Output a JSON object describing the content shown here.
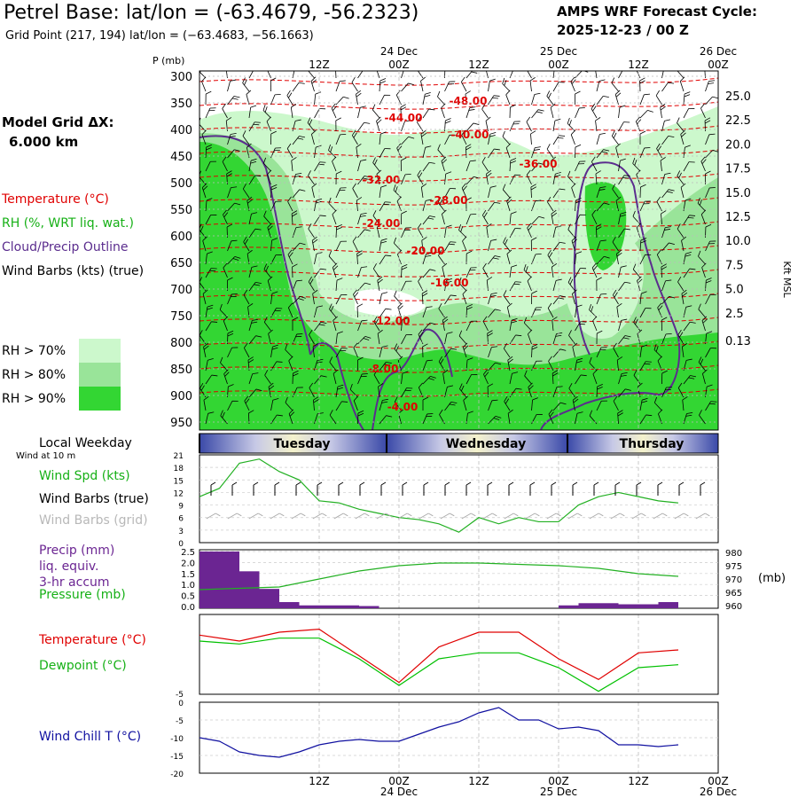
{
  "header": {
    "title": "Petrel Base:  lat/lon = (-63.4679, -56.2323)",
    "grid_point": "Grid Point (217, 194) lat/lon = (−63.4683, −56.1663)",
    "forecast_title": "AMPS WRF Forecast Cycle:",
    "forecast_cycle": "2025-12-23 / 00  Z"
  },
  "left_labels": {
    "grid_title": "Model Grid ΔX:",
    "grid_value": "6.000 km",
    "temperature": "Temperature (°C)",
    "rh": "RH (%, WRT liq. wat.)",
    "cloud": "Cloud/Precip Outline",
    "wind_barbs": "Wind Barbs (kts) (true)",
    "rh70": "RH > 70%",
    "rh80": "RH > 80%",
    "rh90": "RH > 90%",
    "local_weekday": "Local Weekday",
    "wind_at": "Wind at 10 m",
    "wind_spd": "Wind Spd (kts)",
    "wind_barbs_true": "Wind Barbs (true)",
    "wind_barbs_grid": "Wind Barbs (grid)",
    "precip1": "Precip (mm)",
    "precip2": "liq. equiv.",
    "precip3": "3-hr accum",
    "pressure": "Pressure (mb)",
    "temperature2": "Temperature (°C)",
    "dewpoint": "Dewpoint (°C)",
    "windchill": "Wind Chill T (°C)"
  },
  "colors": {
    "rh70": "#ccf8cc",
    "rh80": "#99e499",
    "rh90": "#33d633",
    "temperature": "#e00000",
    "dewpoint": "#00c000",
    "cloud": "#5b2d8e",
    "precip": "#6b2592",
    "windchill": "#1010a0",
    "pressure": "#22b022"
  },
  "chart_data": [
    {
      "type": "heatmap",
      "title": "Vertical cross-section",
      "ylabel": "P (mb)",
      "y2label": "Kft MSL",
      "pressure_ticks": [
        "300",
        "350",
        "400",
        "450",
        "500",
        "550",
        "600",
        "650",
        "700",
        "750",
        "800",
        "850",
        "900",
        "950"
      ],
      "kft_ticks": [
        "25.0",
        "22.5",
        "20.0",
        "17.5",
        "15.0",
        "12.5",
        "10.0",
        "7.5",
        "5.0",
        "2.5",
        "0.13"
      ],
      "top_dates": [
        "24 Dec",
        "25 Dec",
        "26 Dec"
      ],
      "top_times": [
        "12Z",
        "00Z",
        "12Z",
        "00Z",
        "12Z",
        "00Z"
      ],
      "temperature_labels": [
        "-48.00",
        "-44.00",
        "-40.00",
        "-36.00",
        "-32.00",
        "-28.00",
        "-24.00",
        "-20.00",
        "-16.00",
        "-12.00",
        "-8.00",
        "-4.00"
      ]
    },
    {
      "type": "line",
      "title": "Wind Spd (kts)",
      "days": [
        "Tuesday",
        "Wednesday",
        "Thursday"
      ],
      "yticks": [
        "21",
        "18",
        "15",
        "12",
        "9",
        "6",
        "3",
        "0"
      ],
      "ylim": [
        0,
        21
      ],
      "x": [
        0,
        3,
        6,
        9,
        12,
        15,
        18,
        21,
        24,
        27,
        30,
        33,
        36,
        39,
        42,
        45,
        48,
        51,
        54,
        57,
        60,
        63,
        66,
        69,
        72
      ],
      "values": [
        11,
        13,
        19,
        20,
        17,
        15,
        10,
        9.5,
        8,
        7,
        6,
        5.5,
        4.5,
        2.5,
        6,
        4.5,
        6,
        5,
        5,
        9,
        11,
        12,
        11,
        10,
        9.5
      ]
    },
    {
      "type": "bar",
      "title": "Precip (mm) liq. equiv. 3-hr accum",
      "yticks": [
        "2.5",
        "2.0",
        "1.5",
        "1.0",
        "0.5",
        "0.0"
      ],
      "ylim": [
        0,
        2.5
      ],
      "categories": [
        "0",
        "3",
        "6",
        "9",
        "12",
        "15",
        "18",
        "21",
        "24",
        "27",
        "30",
        "33",
        "36",
        "39",
        "42",
        "45",
        "48",
        "51",
        "54",
        "57",
        "60",
        "63",
        "66",
        "69"
      ],
      "values": [
        2.5,
        2.5,
        1.6,
        0.8,
        0.2,
        0.05,
        0.05,
        0.05,
        0.02,
        0,
        0,
        0,
        0,
        0,
        0,
        0,
        0,
        0,
        0.05,
        0.15,
        0.15,
        0.1,
        0.1,
        0.2
      ]
    },
    {
      "type": "line",
      "title": "Pressure (mb)",
      "yticks": [
        "980",
        "975",
        "970",
        "965",
        "960"
      ],
      "ylim": [
        960,
        980
      ],
      "unit": "(mb)",
      "x": [
        0,
        6,
        12,
        18,
        24,
        30,
        36,
        42,
        48,
        54,
        60,
        66,
        72
      ],
      "values": [
        966,
        966.5,
        967,
        970,
        973,
        975,
        976,
        976,
        975.5,
        975,
        974,
        972,
        971
      ]
    },
    {
      "type": "line",
      "title": "Temperature / Dewpoint (°C)",
      "yticks": [
        "-5"
      ],
      "series": [
        {
          "name": "Temperature",
          "x": [
            0,
            6,
            12,
            18,
            24,
            30,
            36,
            42,
            48,
            54,
            60,
            66,
            72
          ],
          "values": [
            2,
            1,
            2.5,
            3,
            -1.5,
            -6,
            0,
            2.5,
            2.5,
            -2,
            -5.5,
            -1,
            -0.5
          ]
        },
        {
          "name": "Dewpoint",
          "x": [
            0,
            6,
            12,
            18,
            24,
            30,
            36,
            42,
            48,
            54,
            60,
            66,
            72
          ],
          "values": [
            1,
            0.5,
            1.5,
            1.5,
            -2,
            -6.5,
            -2,
            -1,
            -1,
            -3.5,
            -7.5,
            -3.5,
            -3
          ]
        }
      ]
    },
    {
      "type": "line",
      "title": "Wind Chill T (°C)",
      "yticks": [
        "0",
        "-5",
        "-10",
        "-15",
        "-20"
      ],
      "ylim": [
        -20,
        0
      ],
      "bottom_times": [
        "12Z",
        "00Z",
        "12Z",
        "00Z",
        "12Z",
        "00Z"
      ],
      "bottom_dates": [
        "24 Dec",
        "25 Dec",
        "26 Dec"
      ],
      "x": [
        0,
        3,
        6,
        9,
        12,
        15,
        18,
        21,
        24,
        27,
        30,
        33,
        36,
        39,
        42,
        45,
        48,
        51,
        54,
        57,
        60,
        63,
        66,
        69,
        72
      ],
      "values": [
        -10,
        -11,
        -14,
        -15,
        -15.5,
        -14,
        -12,
        -11,
        -10.5,
        -11,
        -11,
        -9,
        -7,
        -5.5,
        -3,
        -1.5,
        -5,
        -5,
        -7.5,
        -7,
        -8,
        -12,
        -12,
        -12.5,
        -12
      ]
    }
  ]
}
